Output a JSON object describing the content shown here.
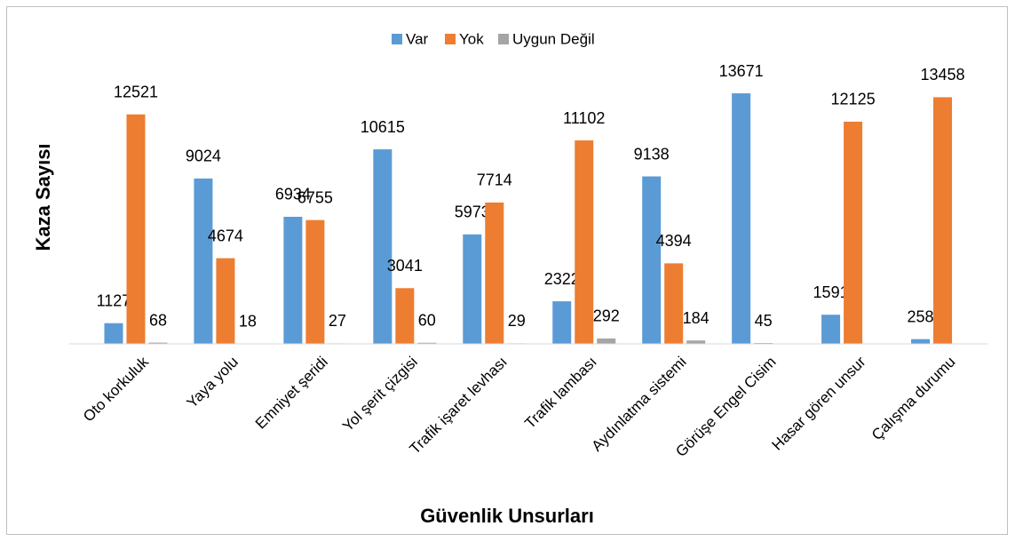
{
  "chart_data": {
    "type": "bar",
    "xlabel": "Güvenlik Unsurları",
    "ylabel": "Kaza Sayısı",
    "categories": [
      "Oto korkuluk",
      "Yaya yolu",
      "Emniyet şeridi",
      "Yol şerit çizgisi",
      "Trafik işaret levhası",
      "Trafik lambası",
      "Aydınlatma sistemi",
      "Görüşe Engel Cisim",
      "Hasar gören unsur",
      "Çalışma durumu"
    ],
    "series": [
      {
        "name": "Var",
        "color": "#5b9bd5",
        "values": [
          1127,
          9024,
          6934,
          10615,
          5973,
          2322,
          9138,
          13671,
          1591,
          258
        ]
      },
      {
        "name": "Yok",
        "color": "#ed7d31",
        "values": [
          12521,
          4674,
          6755,
          3041,
          7714,
          11102,
          4394,
          45,
          12125,
          13458
        ]
      },
      {
        "name": "Uygun Değil",
        "color": "#a5a5a5",
        "values": [
          68,
          18,
          27,
          60,
          29,
          292,
          184,
          null,
          null,
          null
        ]
      }
    ],
    "ylim": [
      0,
      16000
    ],
    "legend": "top"
  }
}
